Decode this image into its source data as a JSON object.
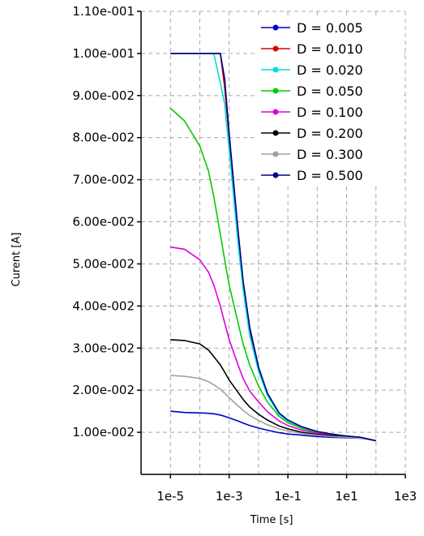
{
  "chart_data": {
    "type": "line",
    "xlabel": "Time [s]",
    "ylabel": "Curent [A]",
    "xscale": "log",
    "xlim": [
      1e-06,
      1000
    ],
    "ylim": [
      0,
      0.11
    ],
    "x_ticks": [
      "1e-5",
      "1e-3",
      "1e-1",
      "1e1",
      "1e3"
    ],
    "x_tick_values": [
      1e-05,
      0.001,
      0.1,
      10,
      1000
    ],
    "y_ticks": [
      "1.10e-001",
      "1.00e-001",
      "9.00e-002",
      "8.00e-002",
      "7.00e-002",
      "6.00e-002",
      "5.00e-002",
      "4.00e-002",
      "3.00e-002",
      "2.00e-002",
      "1.00e-002"
    ],
    "y_tick_values": [
      0.11,
      0.1,
      0.09,
      0.08,
      0.07,
      0.06,
      0.05,
      0.04,
      0.03,
      0.02,
      0.01
    ],
    "grid": true,
    "legend_position": "top-right",
    "x": [
      1e-05,
      3e-05,
      0.0001,
      0.0002,
      0.0003,
      0.0005,
      0.0007,
      0.001,
      0.002,
      0.003,
      0.005,
      0.01,
      0.02,
      0.05,
      0.1,
      0.3,
      1,
      3,
      10,
      30,
      100
    ],
    "series": [
      {
        "name": "D = 0.005",
        "color": "#0000cc",
        "values": [
          0.015,
          0.0147,
          0.0146,
          0.0145,
          0.0144,
          0.0141,
          0.0138,
          0.0134,
          0.0127,
          0.0122,
          0.0116,
          0.011,
          0.0105,
          0.0099,
          0.0096,
          0.0093,
          0.009,
          0.0088,
          0.0087,
          0.0086,
          0.008
        ]
      },
      {
        "name": "D = 0.010",
        "color": "#dd0000",
        "values": [
          0.1,
          0.1,
          0.1,
          0.1,
          0.1,
          0.1,
          0.092,
          0.08,
          0.057,
          0.045,
          0.034,
          0.025,
          0.019,
          0.0145,
          0.0128,
          0.0112,
          0.0101,
          0.0095,
          0.0091,
          0.0088,
          0.008
        ]
      },
      {
        "name": "D = 0.020",
        "color": "#00dddd",
        "values": [
          0.1,
          0.1,
          0.1,
          0.1,
          0.1,
          0.093,
          0.088,
          0.077,
          0.055,
          0.044,
          0.033,
          0.0245,
          0.0188,
          0.0143,
          0.0127,
          0.0111,
          0.0101,
          0.0095,
          0.0091,
          0.0088,
          0.008
        ]
      },
      {
        "name": "D = 0.050",
        "color": "#00cc00",
        "values": [
          0.087,
          0.084,
          0.078,
          0.072,
          0.066,
          0.057,
          0.051,
          0.045,
          0.036,
          0.031,
          0.026,
          0.021,
          0.0172,
          0.0138,
          0.0123,
          0.0109,
          0.01,
          0.0094,
          0.009,
          0.0087,
          0.008
        ]
      },
      {
        "name": "D = 0.100",
        "color": "#dd00dd",
        "values": [
          0.054,
          0.0535,
          0.051,
          0.048,
          0.045,
          0.04,
          0.036,
          0.032,
          0.026,
          0.0228,
          0.0198,
          0.0172,
          0.0149,
          0.0127,
          0.0116,
          0.0105,
          0.0098,
          0.0093,
          0.009,
          0.0087,
          0.008
        ]
      },
      {
        "name": "D = 0.200",
        "color": "#000000",
        "values": [
          0.032,
          0.0318,
          0.031,
          0.0295,
          0.028,
          0.026,
          0.0243,
          0.0224,
          0.0195,
          0.0178,
          0.016,
          0.0143,
          0.0129,
          0.0115,
          0.0108,
          0.01,
          0.0095,
          0.0092,
          0.0089,
          0.0087,
          0.008
        ]
      },
      {
        "name": "D = 0.300",
        "color": "#a0a0a0",
        "values": [
          0.0235,
          0.0233,
          0.0228,
          0.022,
          0.0213,
          0.0202,
          0.0193,
          0.0182,
          0.0163,
          0.0152,
          0.014,
          0.0128,
          0.0118,
          0.0108,
          0.0103,
          0.0097,
          0.0093,
          0.009,
          0.0088,
          0.0086,
          0.008
        ]
      },
      {
        "name": "D = 0.500",
        "color": "#000088",
        "values": [
          0.1,
          0.1,
          0.1,
          0.1,
          0.1,
          0.1,
          0.094,
          0.081,
          0.058,
          0.046,
          0.035,
          0.0255,
          0.0193,
          0.0146,
          0.0129,
          0.0113,
          0.0102,
          0.0096,
          0.0091,
          0.0088,
          0.008
        ]
      }
    ]
  }
}
